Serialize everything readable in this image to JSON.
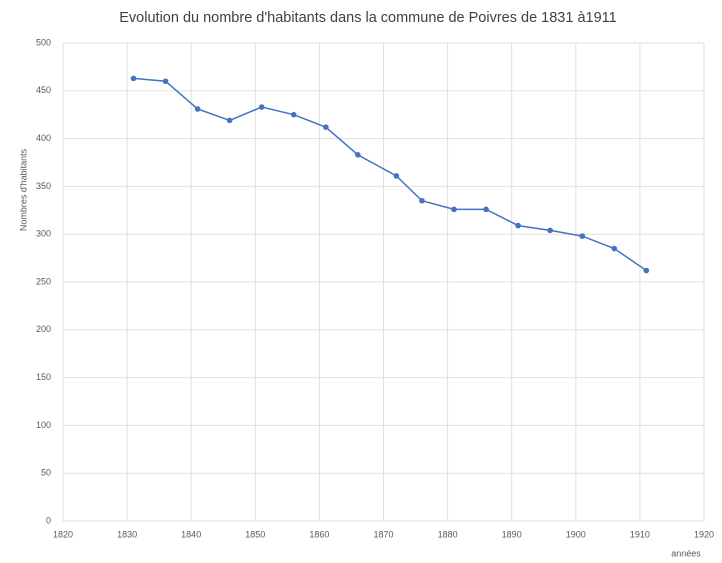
{
  "chart_data": {
    "type": "line",
    "title": "Evolution  du nombre d'habitants dans la commune de Poivres de 1831 à1911",
    "y_label": "Nombres d'habitants",
    "x_label": "années",
    "x": [
      1831,
      1836,
      1841,
      1846,
      1851,
      1856,
      1861,
      1866,
      1872,
      1876,
      1881,
      1886,
      1891,
      1896,
      1901,
      1906,
      1911
    ],
    "series": [
      {
        "name": "Nombres d'habitants",
        "color": "#4472c4",
        "values": [
          463,
          460,
          431,
          419,
          433,
          425,
          412,
          383,
          361,
          335,
          326,
          326,
          309,
          304,
          298,
          285,
          262
        ]
      }
    ],
    "xlim": [
      1820,
      1920
    ],
    "xticks": [
      1820,
      1830,
      1840,
      1850,
      1860,
      1870,
      1880,
      1890,
      1900,
      1910,
      1920
    ],
    "ylim": [
      0,
      500
    ],
    "yticks": [
      0,
      50,
      100,
      150,
      200,
      250,
      300,
      350,
      400,
      450,
      500
    ],
    "grid": true
  }
}
